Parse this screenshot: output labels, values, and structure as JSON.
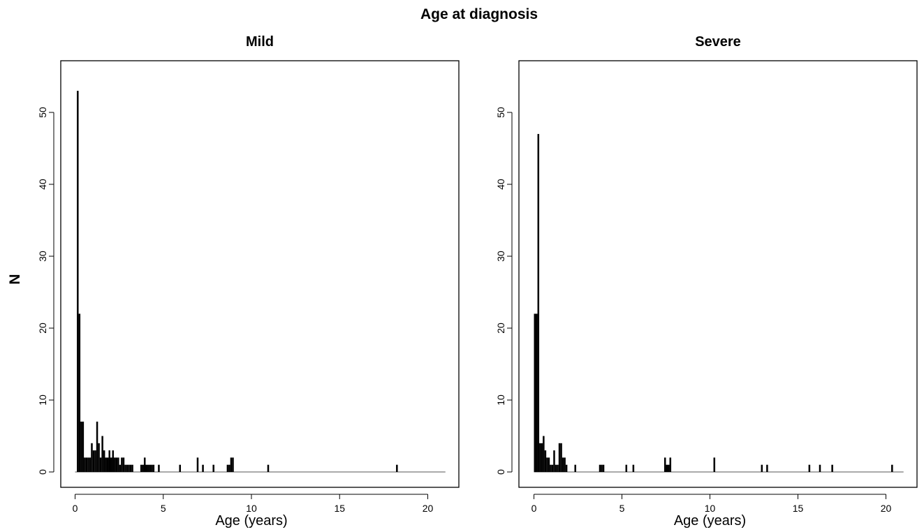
{
  "figure": {
    "title": "Age at diagnosis",
    "ylabel": "N"
  },
  "chart_data": [
    {
      "type": "bar",
      "title": "Mild",
      "xlabel": "Age (years)",
      "ylabel": "N",
      "xlim": [
        0,
        21
      ],
      "ylim": [
        0,
        55
      ],
      "xticks": [
        0,
        5,
        10,
        15,
        20
      ],
      "yticks": [
        0,
        10,
        20,
        30,
        40,
        50
      ],
      "bin_width": 0.1,
      "bins": [
        {
          "x": 0.1,
          "y": 53
        },
        {
          "x": 0.2,
          "y": 22
        },
        {
          "x": 0.3,
          "y": 7
        },
        {
          "x": 0.4,
          "y": 7
        },
        {
          "x": 0.5,
          "y": 2
        },
        {
          "x": 0.6,
          "y": 2
        },
        {
          "x": 0.7,
          "y": 2
        },
        {
          "x": 0.8,
          "y": 2
        },
        {
          "x": 0.9,
          "y": 4
        },
        {
          "x": 1.0,
          "y": 3
        },
        {
          "x": 1.1,
          "y": 3
        },
        {
          "x": 1.2,
          "y": 7
        },
        {
          "x": 1.3,
          "y": 4
        },
        {
          "x": 1.4,
          "y": 2
        },
        {
          "x": 1.5,
          "y": 5
        },
        {
          "x": 1.6,
          "y": 3
        },
        {
          "x": 1.7,
          "y": 2
        },
        {
          "x": 1.8,
          "y": 2
        },
        {
          "x": 1.9,
          "y": 3
        },
        {
          "x": 2.0,
          "y": 2
        },
        {
          "x": 2.1,
          "y": 3
        },
        {
          "x": 2.2,
          "y": 2
        },
        {
          "x": 2.3,
          "y": 2
        },
        {
          "x": 2.4,
          "y": 2
        },
        {
          "x": 2.5,
          "y": 1
        },
        {
          "x": 2.6,
          "y": 2
        },
        {
          "x": 2.7,
          "y": 2
        },
        {
          "x": 2.8,
          "y": 1
        },
        {
          "x": 2.9,
          "y": 1
        },
        {
          "x": 3.0,
          "y": 1
        },
        {
          "x": 3.1,
          "y": 1
        },
        {
          "x": 3.2,
          "y": 1
        },
        {
          "x": 3.7,
          "y": 1
        },
        {
          "x": 3.8,
          "y": 1
        },
        {
          "x": 3.9,
          "y": 2
        },
        {
          "x": 4.0,
          "y": 1
        },
        {
          "x": 4.1,
          "y": 1
        },
        {
          "x": 4.2,
          "y": 1
        },
        {
          "x": 4.3,
          "y": 1
        },
        {
          "x": 4.4,
          "y": 1
        },
        {
          "x": 4.7,
          "y": 1
        },
        {
          "x": 5.9,
          "y": 1
        },
        {
          "x": 6.9,
          "y": 2
        },
        {
          "x": 7.2,
          "y": 1
        },
        {
          "x": 7.8,
          "y": 1
        },
        {
          "x": 8.6,
          "y": 1
        },
        {
          "x": 8.7,
          "y": 1
        },
        {
          "x": 8.8,
          "y": 2
        },
        {
          "x": 8.9,
          "y": 2
        },
        {
          "x": 10.9,
          "y": 1
        },
        {
          "x": 18.2,
          "y": 1
        }
      ]
    },
    {
      "type": "bar",
      "title": "Severe",
      "xlabel": "Age (years)",
      "ylabel": "N",
      "xlim": [
        0,
        21
      ],
      "ylim": [
        0,
        55
      ],
      "xticks": [
        0,
        5,
        10,
        15,
        20
      ],
      "yticks": [
        0,
        10,
        20,
        30,
        40,
        50
      ],
      "bin_width": 0.1,
      "bins": [
        {
          "x": 0.0,
          "y": 22
        },
        {
          "x": 0.1,
          "y": 22
        },
        {
          "x": 0.2,
          "y": 47
        },
        {
          "x": 0.3,
          "y": 4
        },
        {
          "x": 0.4,
          "y": 4
        },
        {
          "x": 0.5,
          "y": 5
        },
        {
          "x": 0.6,
          "y": 3
        },
        {
          "x": 0.7,
          "y": 2
        },
        {
          "x": 0.8,
          "y": 2
        },
        {
          "x": 0.9,
          "y": 1
        },
        {
          "x": 1.0,
          "y": 1
        },
        {
          "x": 1.1,
          "y": 3
        },
        {
          "x": 1.2,
          "y": 1
        },
        {
          "x": 1.3,
          "y": 1
        },
        {
          "x": 1.4,
          "y": 4
        },
        {
          "x": 1.5,
          "y": 4
        },
        {
          "x": 1.6,
          "y": 2
        },
        {
          "x": 1.7,
          "y": 2
        },
        {
          "x": 1.8,
          "y": 1
        },
        {
          "x": 2.3,
          "y": 1
        },
        {
          "x": 3.7,
          "y": 1
        },
        {
          "x": 3.8,
          "y": 1
        },
        {
          "x": 3.9,
          "y": 1
        },
        {
          "x": 5.2,
          "y": 1
        },
        {
          "x": 5.6,
          "y": 1
        },
        {
          "x": 7.4,
          "y": 2
        },
        {
          "x": 7.5,
          "y": 1
        },
        {
          "x": 7.6,
          "y": 1
        },
        {
          "x": 7.7,
          "y": 2
        },
        {
          "x": 10.2,
          "y": 2
        },
        {
          "x": 12.9,
          "y": 1
        },
        {
          "x": 13.2,
          "y": 1
        },
        {
          "x": 15.6,
          "y": 1
        },
        {
          "x": 16.2,
          "y": 1
        },
        {
          "x": 16.9,
          "y": 1
        },
        {
          "x": 20.3,
          "y": 1
        }
      ]
    }
  ]
}
